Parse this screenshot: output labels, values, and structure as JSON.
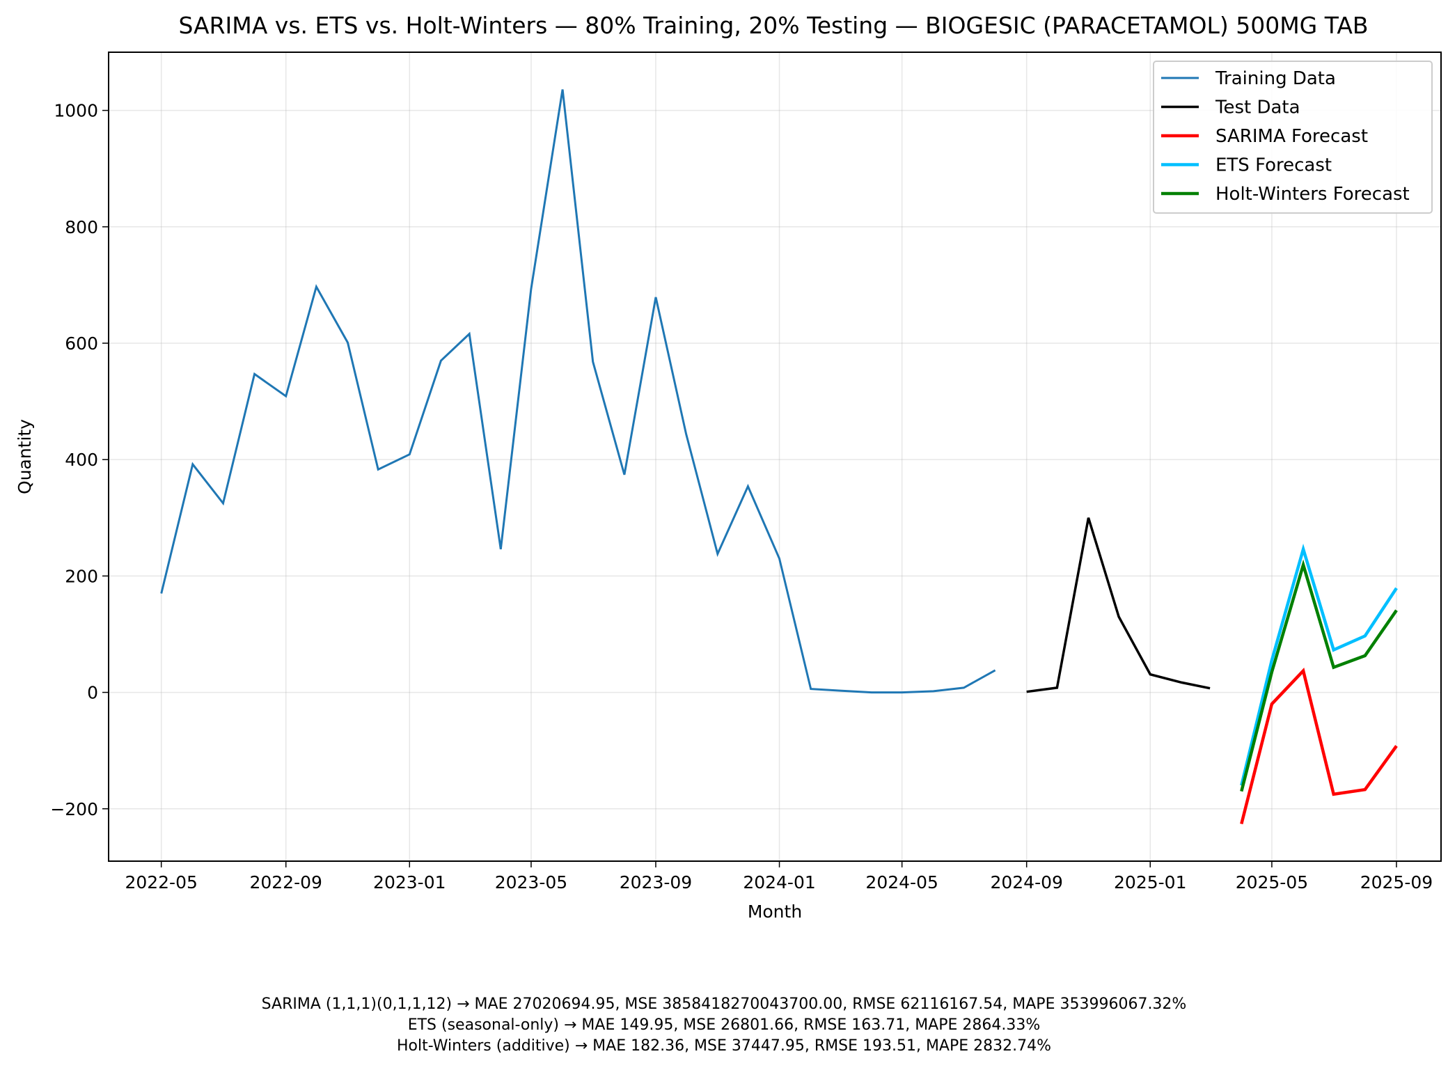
{
  "chart_data": {
    "type": "line",
    "title": "SARIMA vs. ETS vs. Holt-Winters — 80% Training, 20% Testing — BIOGESIC (PARACETAMOL) 500MG TAB",
    "xlabel": "Month",
    "ylabel": "Quantity",
    "xlim": [
      "2022-03-10",
      "2025-10-15"
    ],
    "ylim": [
      -290,
      1100
    ],
    "grid": true,
    "legend_position": "top-right",
    "x_ticks": [
      "2022-05",
      "2022-09",
      "2023-01",
      "2023-05",
      "2023-09",
      "2024-01",
      "2024-05",
      "2024-09",
      "2025-01",
      "2025-05",
      "2025-09"
    ],
    "y_ticks": [
      -200,
      0,
      200,
      400,
      600,
      800,
      1000
    ],
    "y_tick_labels": [
      "−200",
      "0",
      "200",
      "400",
      "600",
      "800",
      "1000"
    ],
    "series": [
      {
        "name": "Training Data",
        "color": "#1f77b4",
        "x": [
          "2022-05-01",
          "2022-06-01",
          "2022-07-01",
          "2022-08-01",
          "2022-09-01",
          "2022-10-01",
          "2022-11-01",
          "2022-12-01",
          "2023-01-01",
          "2023-02-01",
          "2023-03-01",
          "2023-04-01",
          "2023-05-01",
          "2023-06-01",
          "2023-07-01",
          "2023-08-01",
          "2023-09-01",
          "2023-10-01",
          "2023-11-01",
          "2023-12-01",
          "2024-01-01",
          "2024-02-01",
          "2024-03-01",
          "2024-04-01",
          "2024-05-01",
          "2024-06-01",
          "2024-07-01",
          "2024-08-01"
        ],
        "values": [
          170,
          392,
          325,
          547,
          509,
          697,
          601,
          383,
          409,
          570,
          616,
          246,
          693,
          1036,
          568,
          374,
          679,
          444,
          238,
          354,
          230,
          6,
          3,
          0,
          0,
          2,
          8,
          38
        ]
      },
      {
        "name": "Test Data",
        "color": "#000000",
        "x": [
          "2024-09-01",
          "2024-10-01",
          "2024-11-01",
          "2024-12-01",
          "2025-01-01",
          "2025-02-01",
          "2025-03-01"
        ],
        "values": [
          1,
          8,
          300,
          130,
          31,
          17,
          7
        ]
      },
      {
        "name": "SARIMA Forecast",
        "color": "#ff0000",
        "x": [
          "2025-04-01",
          "2025-05-01",
          "2025-06-01",
          "2025-07-01",
          "2025-08-01",
          "2025-09-01"
        ],
        "values": [
          -226,
          -20,
          37,
          -175,
          -167,
          -92
        ]
      },
      {
        "name": "ETS Forecast",
        "color": "#00bfff",
        "x": [
          "2025-04-01",
          "2025-05-01",
          "2025-06-01",
          "2025-07-01",
          "2025-08-01",
          "2025-09-01"
        ],
        "values": [
          -160,
          55,
          246,
          73,
          97,
          179
        ]
      },
      {
        "name": "Holt-Winters Forecast",
        "color": "#008000",
        "x": [
          "2025-04-01",
          "2025-05-01",
          "2025-06-01",
          "2025-07-01",
          "2025-08-01",
          "2025-09-01"
        ],
        "values": [
          -170,
          35,
          219,
          43,
          63,
          141
        ]
      }
    ],
    "annotations": [
      "SARIMA (1,1,1)(0,1,1,12) → MAE 27020694.95, MSE 3858418270043700.00, RMSE 62116167.54, MAPE 353996067.32%",
      "ETS (seasonal-only) → MAE 149.95, MSE 26801.66, RMSE 163.71, MAPE 2864.33%",
      "Holt-Winters (additive) → MAE 182.36, MSE 37447.95, RMSE 193.51, MAPE 2832.74%"
    ]
  }
}
